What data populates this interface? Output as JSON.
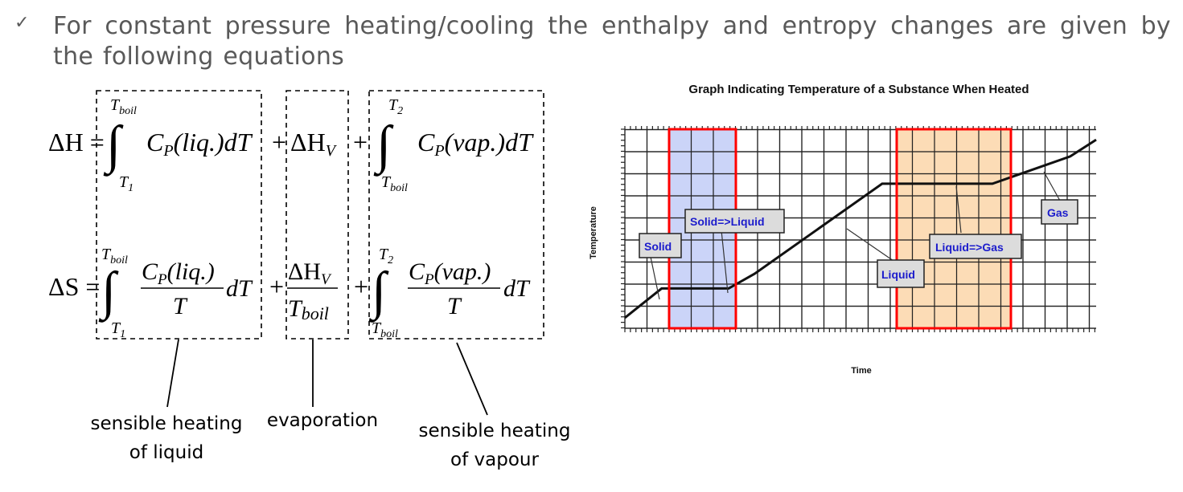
{
  "bullet": {
    "icon": "checkmark-icon",
    "text": "For constant pressure heating/cooling the enthalpy and entropy changes are given by the following equations"
  },
  "equations": {
    "enthalpy_lhs": "ΔH =",
    "entropy_lhs": "ΔS =",
    "t_boil": "boil",
    "t1": "1",
    "t2": "2",
    "cp_liq": "(liq.)",
    "cp_vap": "(vap.)",
    "dT": "dT",
    "plus": "+",
    "delta_h": "ΔH",
    "v_sub": "V"
  },
  "labels": {
    "liquid_line1": "sensible heating",
    "liquid_line2": "of liquid",
    "evaporation": "evaporation",
    "vapour_line1": "sensible heating",
    "vapour_line2": "of vapour"
  },
  "chart_data": {
    "type": "line",
    "title": "Graph Indicating Temperature of a Substance When Heated",
    "xlabel": "Time",
    "ylabel": "Temperature",
    "x": [
      0,
      1.7,
      4.8,
      6.0,
      11.9,
      17.0,
      20.6,
      21.8
    ],
    "values": [
      0.5,
      1.9,
      1.9,
      2.6,
      6.9,
      6.9,
      8.2,
      9.0
    ],
    "xlim": [
      0,
      21.8
    ],
    "ylim": [
      0,
      9.5
    ],
    "grid": true,
    "annotations": [
      "Solid",
      "Solid=>Liquid",
      "Liquid",
      "Liquid=>Gas",
      "Gas"
    ],
    "highlight_colors": {
      "melting": "#b9c6f5",
      "boiling": "#fbd3a4",
      "border": "#ff0000"
    },
    "line_color": "#111111"
  }
}
